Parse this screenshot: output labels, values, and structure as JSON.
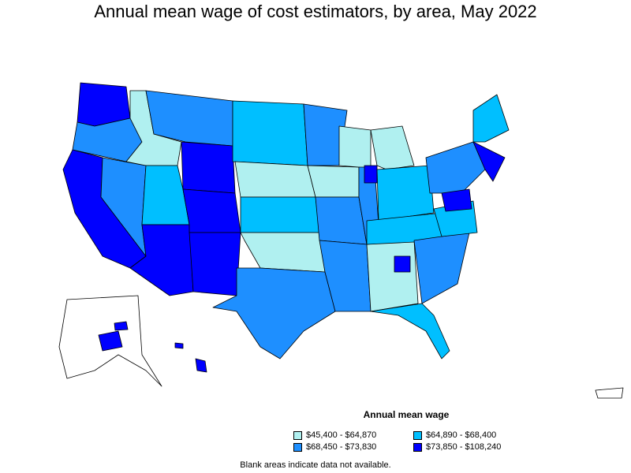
{
  "title": "Annual mean wage of cost estimators, by area, May 2022",
  "legend": {
    "title": "Annual mean wage",
    "items": [
      {
        "label": "$45,400 - $64,870",
        "color": "#b0f0f0"
      },
      {
        "label": "$64,890 - $68,400",
        "color": "#00bfff"
      },
      {
        "label": "$68,450 - $73,830",
        "color": "#1e8fff"
      },
      {
        "label": "$73,850 - $108,240",
        "color": "#0000ff"
      }
    ]
  },
  "footnote": "Blank areas indicate data not available."
}
